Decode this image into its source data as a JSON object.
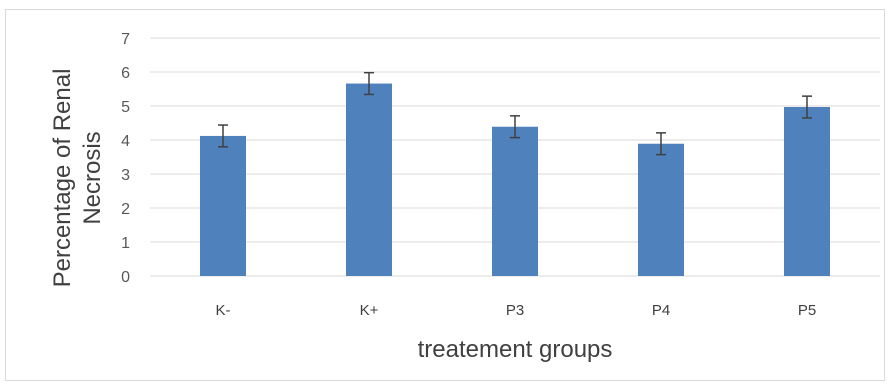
{
  "chart_data": {
    "type": "bar",
    "title": "",
    "xlabel": "treatement groups",
    "ylabel_lines": [
      "Percentage of Renal",
      "Necrosis"
    ],
    "categories": [
      "K-",
      "K+",
      "P3",
      "P4",
      "P5"
    ],
    "series": [
      {
        "values": [
          4.12,
          5.66,
          4.39,
          3.89,
          4.97
        ],
        "error": [
          0.32,
          0.32,
          0.32,
          0.32,
          0.32
        ]
      }
    ],
    "ylim": [
      0,
      7
    ],
    "yticks": [
      "0",
      "1",
      "2",
      "3",
      "4",
      "5",
      "6",
      "7"
    ],
    "grid": true,
    "legend": "none",
    "colors": {
      "bar": "#4f81bd",
      "grid": "#d9d9d9",
      "error_bar": "#404040"
    }
  }
}
